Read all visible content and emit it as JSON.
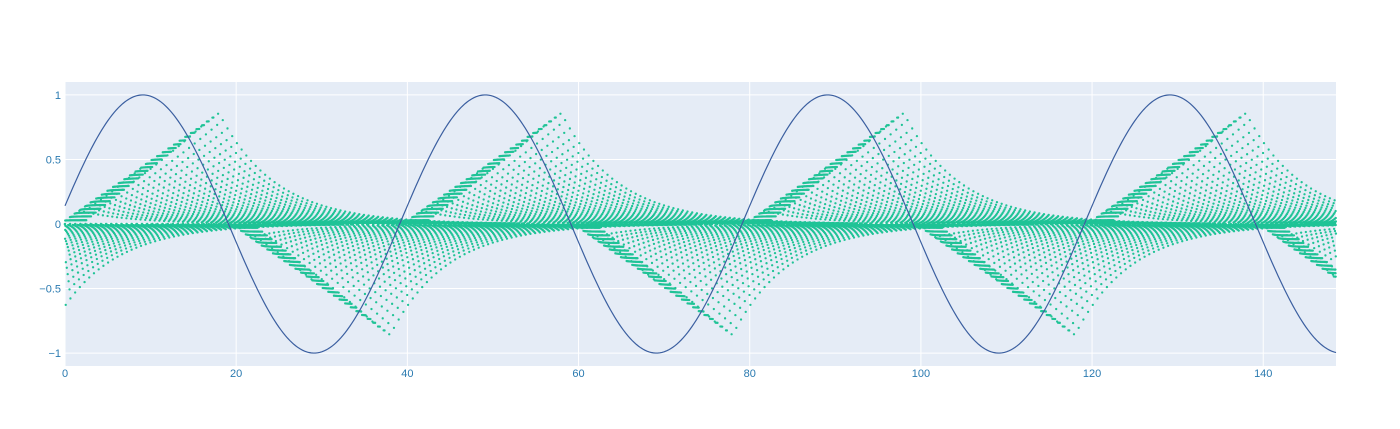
{
  "chart_data": {
    "type": "scatter",
    "title": "",
    "xlabel": "",
    "ylabel": "",
    "xlim": [
      0,
      148.5
    ],
    "ylim": [
      -1.1,
      1.1
    ],
    "grid": true,
    "legend": "none",
    "x_ticks": [
      0,
      20,
      40,
      60,
      80,
      100,
      120,
      140
    ],
    "x_tick_labels": [
      "0",
      "20",
      "40",
      "60",
      "80",
      "100",
      "120",
      "140"
    ],
    "y_ticks": [
      1,
      0.5,
      0,
      -0.5,
      -1
    ],
    "y_tick_labels": [
      "1",
      "0.5",
      "0",
      "−0.5",
      "−1"
    ],
    "series": [
      {
        "kind": "line",
        "color": "#3b5fa0",
        "period": 40,
        "x": [
          0,
          4.5,
          9.1,
          14,
          19.1,
          24.1,
          29.1,
          34,
          39.1,
          44.1,
          49.1,
          54,
          59.1,
          64.1,
          69.1,
          74,
          79.1,
          84.1,
          89.1,
          94,
          99.1,
          104.1,
          109.1,
          114,
          119.1,
          124.1,
          129.1,
          134,
          139.1,
          144.1,
          148.5
        ],
        "y": [
          0.15,
          0.77,
          1,
          0.7,
          0,
          -0.7,
          -1,
          -0.7,
          0,
          0.7,
          1,
          0.7,
          0,
          -0.7,
          -1,
          -0.7,
          0,
          0.7,
          1,
          0.7,
          0,
          -0.7,
          -1,
          -0.7,
          0,
          0.7,
          1,
          0.7,
          0,
          -0.7,
          -0.98
        ]
      },
      {
        "kind": "markers",
        "color": "#1fc396",
        "description_family": "damped dotted copies of the sine wave",
        "family_count": 24,
        "decay_per_unit": 0.13,
        "crest_amplitude": 0.86
      }
    ]
  }
}
